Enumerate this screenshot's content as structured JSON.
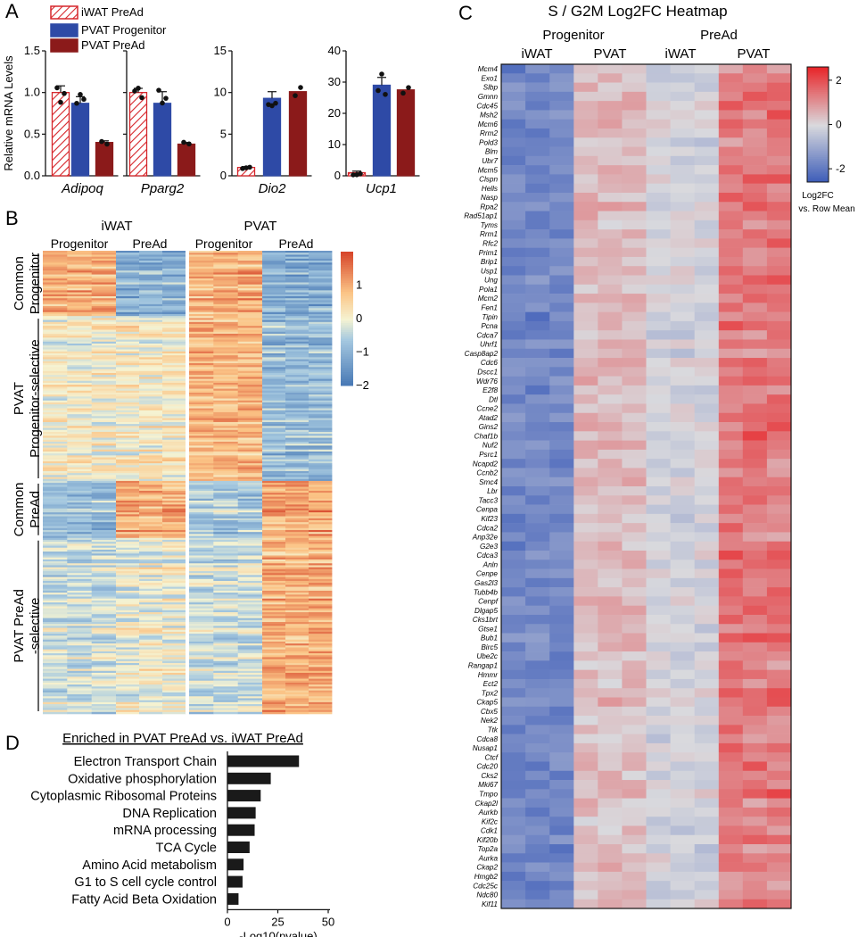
{
  "colors": {
    "iwat_pread": "#d6262b",
    "pvat_progenitor": "#2e4aa6",
    "pvat_pread": "#8b1a1a",
    "heat_low": "#3b5bb8",
    "heat_mid": "#d9d9dd",
    "heat_high": "#e8262a",
    "bar": "#1a1a1a"
  },
  "panels": {
    "A": "A",
    "B": "B",
    "C": "C",
    "D": "D"
  },
  "chart_data": [
    {
      "id": "A",
      "type": "bar",
      "ylabel": "Relative mRNA Levels",
      "legend": [
        "iWAT PreAd",
        "PVAT Progenitor",
        "PVAT PreAd"
      ],
      "subplots": [
        {
          "gene": "Adipoq",
          "ylim": [
            0,
            1.5
          ],
          "yticks": [
            "0.0",
            "0.5",
            "1.0",
            "1.5"
          ],
          "tickvals": [
            0,
            0.5,
            1.0,
            1.5
          ],
          "series": [
            {
              "name": "iWAT PreAd",
              "value": 1.0,
              "err": 0.08
            },
            {
              "name": "PVAT Progenitor",
              "value": 0.87,
              "err": 0.08
            },
            {
              "name": "PVAT PreAd",
              "value": 0.4,
              "err": 0.02
            }
          ]
        },
        {
          "gene": "Pparg2",
          "ylim": [
            0,
            1.5
          ],
          "yticks": [
            "0.0",
            "0.5",
            "1.0",
            "1.5"
          ],
          "tickvals": [
            0,
            0.5,
            1.0,
            1.5
          ],
          "series": [
            {
              "name": "iWAT PreAd",
              "value": 1.0,
              "err": 0.05
            },
            {
              "name": "PVAT Progenitor",
              "value": 0.87,
              "err": 0.14
            },
            {
              "name": "PVAT PreAd",
              "value": 0.38,
              "err": 0.02
            }
          ]
        },
        {
          "gene": "Dio2",
          "ylim": [
            0,
            15
          ],
          "yticks": [
            "0",
            "5",
            "10",
            "15"
          ],
          "tickvals": [
            0,
            5,
            10,
            15
          ],
          "series": [
            {
              "name": "iWAT PreAd",
              "value": 1.0,
              "err": 0.1
            },
            {
              "name": "PVAT Progenitor",
              "value": 9.3,
              "err": 0.8
            },
            {
              "name": "PVAT PreAd",
              "value": 10.1,
              "err": 0.0
            }
          ]
        },
        {
          "gene": "Ucp1",
          "ylim": [
            0,
            40
          ],
          "yticks": [
            "0",
            "10",
            "20",
            "30",
            "40"
          ],
          "tickvals": [
            0,
            10,
            20,
            30,
            40
          ],
          "series": [
            {
              "name": "iWAT PreAd",
              "value": 1.0,
              "err": 0.5
            },
            {
              "name": "PVAT Progenitor",
              "value": 29.0,
              "err": 2.5
            },
            {
              "name": "PVAT PreAd",
              "value": 27.5,
              "err": 0.0
            }
          ]
        }
      ]
    },
    {
      "id": "B",
      "type": "heatmap",
      "group_labels": [
        "iWAT",
        "PVAT"
      ],
      "subgroup_labels": [
        "Progenitor",
        "PreAd",
        "Progenitor",
        "PreAd"
      ],
      "row_clusters": [
        {
          "label_lines": [
            "Common",
            "Progenitor"
          ],
          "fraction": 0.141,
          "pattern": [
            1.0,
            -1.0,
            1.0,
            -1.1
          ]
        },
        {
          "label_lines": [
            "PVAT",
            "Progenitor-selective"
          ],
          "fraction": 0.356,
          "pattern": [
            0.1,
            0.15,
            0.9,
            -0.8
          ]
        },
        {
          "label_lines": [
            "Common",
            "PreAd"
          ],
          "fraction": 0.123,
          "pattern": [
            -0.8,
            1.0,
            -0.6,
            1.1
          ]
        },
        {
          "label_lines": [
            "PVAT PreAd",
            "-selective"
          ],
          "fraction": 0.38,
          "pattern": [
            -0.3,
            0.0,
            -0.3,
            1.0
          ]
        }
      ],
      "colorbar": {
        "ticks": [
          "1",
          "0",
          "−1",
          "−2"
        ],
        "tickvals": [
          1,
          0,
          -1,
          -2
        ],
        "range": [
          -2,
          2
        ]
      }
    },
    {
      "id": "C",
      "type": "heatmap",
      "title": "S / G2M Log2FC Heatmap",
      "group_labels": [
        "Progenitor",
        "PreAd"
      ],
      "column_labels": [
        "iWAT",
        "PVAT",
        "iWAT",
        "PVAT"
      ],
      "genes": [
        "Mcm4",
        "Exo1",
        "Slbp",
        "Gmnn",
        "Cdc45",
        "Msh2",
        "Mcm6",
        "Rrm2",
        "Pold3",
        "Blm",
        "Ubr7",
        "Mcm5",
        "Clspn",
        "Hells",
        "Nasp",
        "Rpa2",
        "Rad51ap1",
        "Tyms",
        "Rrm1",
        "Rfc2",
        "Prim1",
        "Brip1",
        "Usp1",
        "Ung",
        "Pola1",
        "Mcm2",
        "Fen1",
        "Tipin",
        "Pcna",
        "Cdca7",
        "Uhrf1",
        "Casp8ap2",
        "Cdc6",
        "Dscc1",
        "Wdr76",
        "E2f8",
        "Dtl",
        "Ccne2",
        "Atad2",
        "Gins2",
        "Chaf1b",
        "Nuf2",
        "Psrc1",
        "Ncapd2",
        "Ccnb2",
        "Smc4",
        "Lbr",
        "Tacc3",
        "Cenpa",
        "Kif23",
        "Cdca2",
        "Anp32e",
        "G2e3",
        "Cdca3",
        "Anln",
        "Cenpe",
        "Gas2l3",
        "Tubb4b",
        "Cenpf",
        "Dlgap5",
        "Cks1brt",
        "Gtse1",
        "Bub1",
        "Birc5",
        "Ube2c",
        "Rangap1",
        "Hmmr",
        "Ect2",
        "Tpx2",
        "Ckap5",
        "Cbx5",
        "Nek2",
        "Ttk",
        "Cdca8",
        "Nusap1",
        "Ctcf",
        "Cdc20",
        "Cks2",
        "Mki67",
        "Tmpo",
        "Ckap2l",
        "Aurkb",
        "Kif2c",
        "Cdk1",
        "Kif20b",
        "Top2a",
        "Aurka",
        "Ckap2",
        "Hmgb2",
        "Cdc25c",
        "Ndc80",
        "Kif11"
      ],
      "group_means": [
        -1.7,
        0.45,
        -0.1,
        1.4
      ],
      "colorbar": {
        "ticks": [
          "2",
          "0",
          "-2"
        ],
        "tickvals": [
          2,
          0,
          -2
        ],
        "range": [
          -2.6,
          2.6
        ],
        "label_lines": [
          "Log2FC",
          "vs. Row Mean"
        ]
      }
    },
    {
      "id": "D",
      "type": "bar",
      "orientation": "horizontal",
      "title": "Enriched in PVAT PreAd vs. iWAT PreAd",
      "categories": [
        "Electron Transport Chain",
        "Oxidative phosphorylation",
        "Cytoplasmic Ribosomal Proteins",
        "DNA Replication",
        "mRNA processing",
        "TCA Cycle",
        "Amino Acid metabolism",
        "G1 to S cell cycle control",
        "Fatty Acid Beta Oxidation"
      ],
      "values": [
        35.5,
        21.5,
        16.5,
        14.0,
        13.5,
        11.0,
        8.0,
        7.5,
        5.5
      ],
      "xlabel": "-Log10(pvalue)",
      "xticks": [
        "0",
        "25",
        "50"
      ],
      "tickvals": [
        0,
        25,
        50
      ],
      "xlim": [
        0,
        50
      ]
    }
  ]
}
